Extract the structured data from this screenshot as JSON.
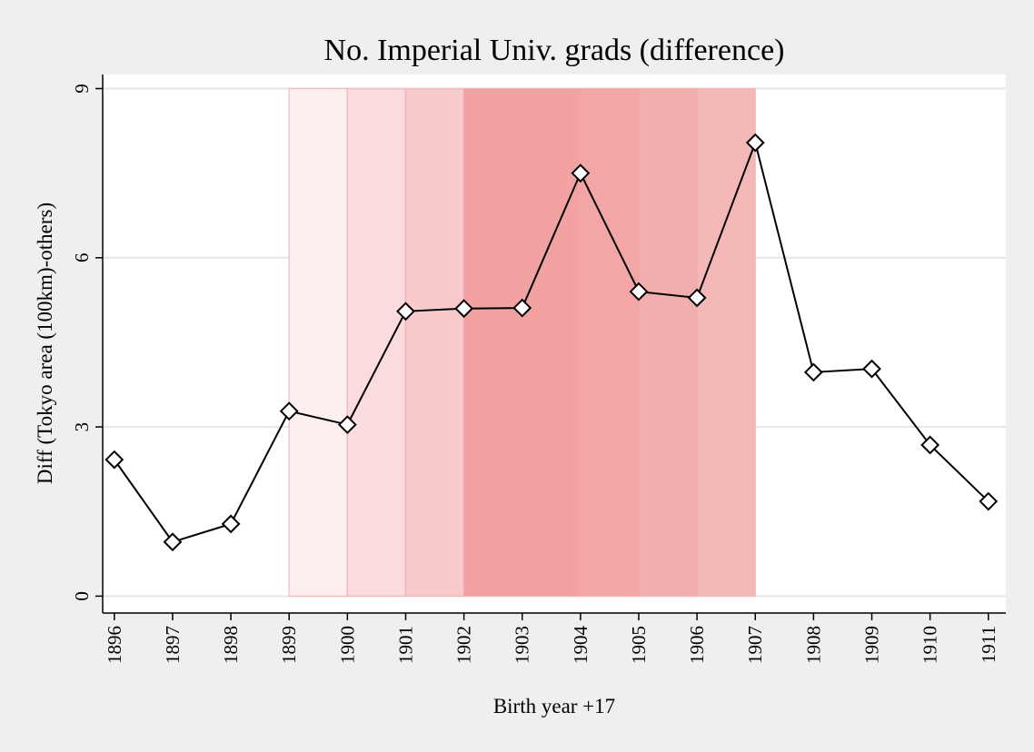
{
  "chart_data": {
    "type": "line",
    "title": "No. Imperial Univ. grads (difference)",
    "xlabel": "Birth year +17",
    "ylabel": "Diff (Tokyo area (100km)-others)",
    "x": [
      1896,
      1897,
      1898,
      1899,
      1900,
      1901,
      1902,
      1903,
      1904,
      1905,
      1906,
      1907,
      1908,
      1909,
      1910,
      1911
    ],
    "series": [
      {
        "values": [
          2.42,
          0.96,
          1.28,
          3.28,
          3.04,
          5.05,
          5.1,
          5.11,
          7.5,
          5.4,
          5.29,
          8.04,
          3.97,
          4.03,
          2.68,
          1.68
        ],
        "marker": "hollow-diamond",
        "color": "#000000"
      }
    ],
    "shaded_bands": [
      {
        "x_start": 1899,
        "x_end": 1900,
        "color": "#fdeef0"
      },
      {
        "x_start": 1900,
        "x_end": 1901,
        "color": "#fadbde"
      },
      {
        "x_start": 1901,
        "x_end": 1902,
        "color": "#f7cacc"
      },
      {
        "x_start": 1902,
        "x_end": 1904,
        "color": "#f1a2a1"
      },
      {
        "x_start": 1904,
        "x_end": 1905,
        "color": "#f2a6a5"
      },
      {
        "x_start": 1905,
        "x_end": 1906,
        "color": "#f2aeac"
      },
      {
        "x_start": 1906,
        "x_end": 1907,
        "color": "#f4b8b7"
      }
    ],
    "yticks": [
      0,
      3,
      6,
      9
    ],
    "ylim": [
      -0.3,
      9.25
    ],
    "xlim": [
      1895.8,
      1911.3
    ],
    "grid": true,
    "legend": "none"
  }
}
